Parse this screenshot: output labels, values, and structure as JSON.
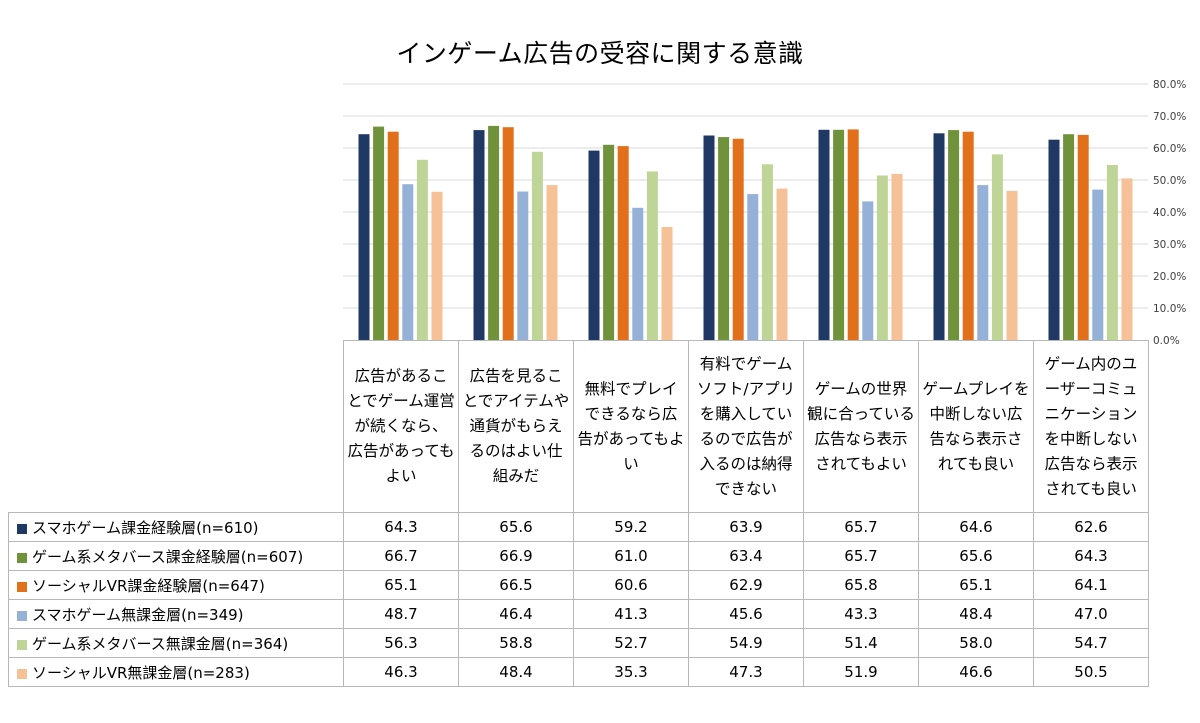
{
  "chart_data": {
    "type": "bar",
    "title": "インゲーム広告の受容に関する意識",
    "ylim": [
      0,
      80
    ],
    "y_ticks": [
      "0.0%",
      "10.0%",
      "20.0%",
      "30.0%",
      "40.0%",
      "50.0%",
      "60.0%",
      "70.0%",
      "80.0%"
    ],
    "grid": true,
    "legend": "table-below",
    "categories": [
      "広告があることでゲーム運営が続くなら、広告があってもよい",
      "広告を見ることでアイテムや通貨がもらえるのはよい仕組みだ",
      "無料でプレイできるなら広告があってもよい",
      "有料でゲームソフト/アプリを購入しているので広告が入るのは納得できない",
      "ゲームの世界観に合っている広告なら表示されてもよい",
      "ゲームプレイを中断しない広告なら表示されても良い",
      "ゲーム内のユーザーコミュニケーションを中断しない広告なら表示されても良い"
    ],
    "series": [
      {
        "name": "スマホゲーム課金経験層(n=610)",
        "color": "#1f3864",
        "values": [
          "64.3",
          "65.6",
          "59.2",
          "63.9",
          "65.7",
          "64.6",
          "62.6"
        ]
      },
      {
        "name": "ゲーム系メタバース課金経験層(n=607)",
        "color": "#70923a",
        "values": [
          "66.7",
          "66.9",
          "61.0",
          "63.4",
          "65.7",
          "65.6",
          "64.3"
        ]
      },
      {
        "name": "ソーシャルVR課金経験層(n=647)",
        "color": "#e2701b",
        "values": [
          "65.1",
          "66.5",
          "60.6",
          "62.9",
          "65.8",
          "65.1",
          "64.1"
        ]
      },
      {
        "name": "スマホゲーム無課金層(n=349)",
        "color": "#95b1d8",
        "values": [
          "48.7",
          "46.4",
          "41.3",
          "45.6",
          "43.3",
          "48.4",
          "47.0"
        ]
      },
      {
        "name": "ゲーム系メタバース無課金層(n=364)",
        "color": "#bfd597",
        "values": [
          "56.3",
          "58.8",
          "52.7",
          "54.9",
          "51.4",
          "58.0",
          "54.7"
        ]
      },
      {
        "name": "ソーシャルVR無課金層(n=283)",
        "color": "#f6c196",
        "values": [
          "46.3",
          "48.4",
          "35.3",
          "47.3",
          "51.9",
          "46.6",
          "50.5"
        ]
      }
    ]
  }
}
